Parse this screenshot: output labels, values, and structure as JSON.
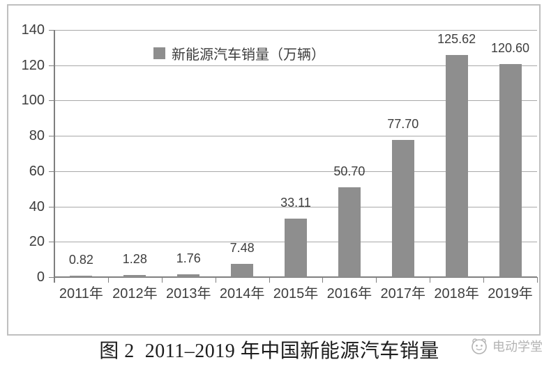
{
  "chart_data": {
    "type": "bar",
    "title": "",
    "legend": "新能源汽车销量（万辆）",
    "legend_position": "top-center",
    "categories": [
      "2011年",
      "2012年",
      "2013年",
      "2014年",
      "2015年",
      "2016年",
      "2017年",
      "2018年",
      "2019年"
    ],
    "values": [
      0.82,
      1.28,
      1.76,
      7.48,
      33.11,
      50.7,
      77.7,
      125.62,
      120.6
    ],
    "value_labels": [
      "0.82",
      "1.28",
      "1.76",
      "7.48",
      "33.11",
      "50.70",
      "77.70",
      "125.62",
      "120.60"
    ],
    "xlabel": "",
    "ylabel": "",
    "ylim": [
      0,
      140
    ],
    "yticks": [
      0,
      20,
      40,
      60,
      80,
      100,
      120,
      140
    ],
    "grid": true
  },
  "caption": "图 2  2011–2019 年中国新能源汽车销量",
  "watermark": "电动学堂",
  "colors": {
    "bar": "#8e8e8e",
    "legend_swatch": "#8e8e8e",
    "gridline": "#a8a8a8",
    "axis": "#7f7f7f",
    "tick_label": "#3d3d3d",
    "value_label": "#3d3d3d",
    "border": "#bfbfbf",
    "caption": "#1c1c1c",
    "watermark": "#b3b3b3"
  }
}
